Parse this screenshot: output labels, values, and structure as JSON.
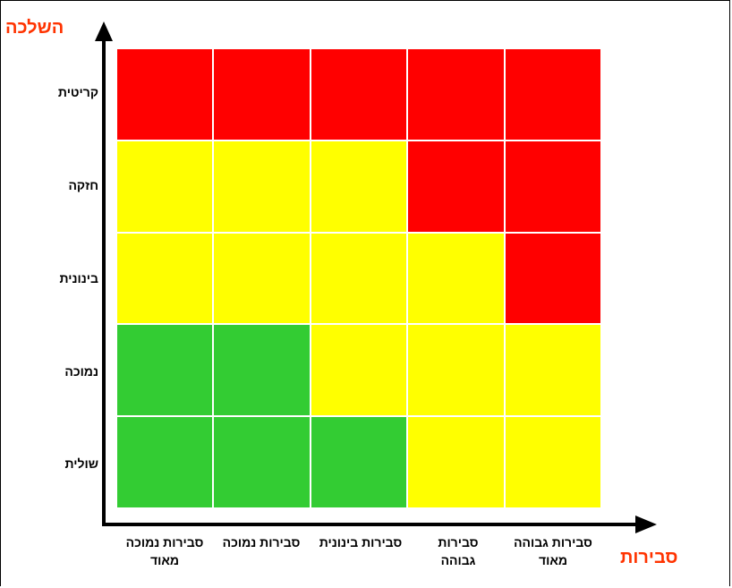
{
  "axes": {
    "y_title": "השלכה",
    "x_title": "סבירות"
  },
  "colors": {
    "high": "#ff0000",
    "medium": "#ffff00",
    "low": "#33cc33"
  },
  "y_labels": [
    "קריטית",
    "חזקה",
    "בינונית",
    "נמוכה",
    "שולית"
  ],
  "x_labels": [
    [
      "סבירות נמוכה",
      "מאוד"
    ],
    [
      "סבירות נמוכה",
      ""
    ],
    [
      "סבירות בינונית",
      ""
    ],
    [
      "סבירות",
      "גבוהה"
    ],
    [
      "סבירות גבוהה",
      "מאוד"
    ]
  ],
  "matrix": [
    [
      "high",
      "high",
      "high",
      "high",
      "high"
    ],
    [
      "medium",
      "medium",
      "medium",
      "high",
      "high"
    ],
    [
      "medium",
      "medium",
      "medium",
      "medium",
      "high"
    ],
    [
      "low",
      "low",
      "medium",
      "medium",
      "medium"
    ],
    [
      "low",
      "low",
      "low",
      "medium",
      "medium"
    ]
  ]
}
